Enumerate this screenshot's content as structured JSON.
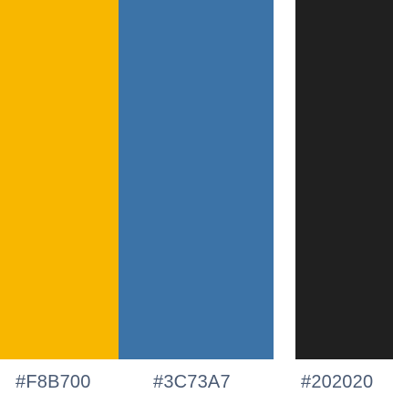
{
  "palette": {
    "swatches": [
      {
        "color": "#F8B700",
        "label": "#F8B700"
      },
      {
        "color": "#3C73A7",
        "label": "#3C73A7"
      },
      {
        "color": "#202020",
        "label": "#202020"
      }
    ]
  }
}
